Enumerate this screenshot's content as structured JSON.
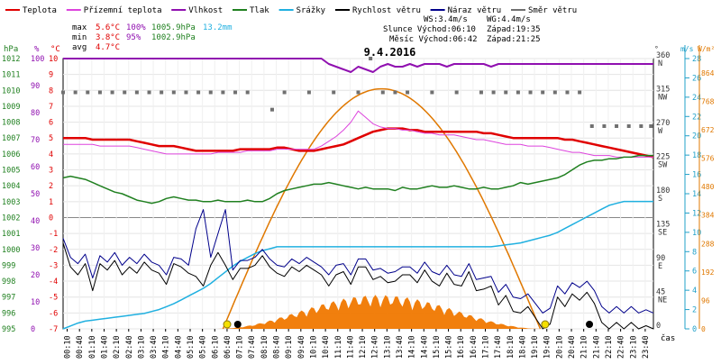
{
  "legend": [
    {
      "label": "Teplota",
      "color": "#e00000"
    },
    {
      "label": "Přízemní teplota",
      "color": "#dd44dd"
    },
    {
      "label": "Vlhkost",
      "color": "#9010b0"
    },
    {
      "label": "Tlak",
      "color": "#208020"
    },
    {
      "label": "Srážky",
      "color": "#20b0e0"
    },
    {
      "label": "Rychlost větru",
      "color": "#000000"
    },
    {
      "label": "Náraz větru",
      "color": "#00008b"
    },
    {
      "label": "Směr větru",
      "color": "#707070"
    }
  ],
  "stats": {
    "max_label": "max",
    "max_temp": "5.6°C",
    "max_hum": "100%",
    "max_press": "1005.9hPa",
    "max_rain": "13.2mm",
    "min_label": "min",
    "min_temp": "3.8°C",
    "min_hum": "95%",
    "min_press": "1002.9hPa",
    "avg_label": "avg",
    "avg_temp": "4.7°C"
  },
  "wind_info": {
    "ws": "WS:3.4m/s",
    "wg": "WG:4.4m/s",
    "sun": "Slunce Východ:06:10",
    "sun_set": "Západ:19:35",
    "moon": "Měsíc Východ:06:42",
    "moon_set": "Západ:21:25"
  },
  "axis_units": {
    "hpa": "hPa",
    "pct": "%",
    "deg": "°C",
    "wind_deg": "°",
    "ms": "m/s",
    "wm2": "W/m²",
    "time": "čas"
  },
  "chart_data": {
    "type": "line",
    "title": "9.4.2016",
    "x_ticks": [
      "00:10",
      "00:40",
      "01:10",
      "01:40",
      "02:10",
      "02:40",
      "03:10",
      "03:40",
      "04:10",
      "04:40",
      "05:10",
      "05:40",
      "06:10",
      "06:40",
      "07:10",
      "07:40",
      "08:10",
      "08:40",
      "09:10",
      "09:40",
      "10:10",
      "10:40",
      "11:10",
      "11:40",
      "12:10",
      "12:40",
      "13:10",
      "13:40",
      "14:10",
      "14:40",
      "15:10",
      "15:40",
      "16:10",
      "16:40",
      "17:10",
      "17:40",
      "18:10",
      "18:40",
      "19:10",
      "19:40",
      "20:10",
      "20:40",
      "21:10",
      "21:40",
      "22:10",
      "22:40",
      "23:10",
      "23:40"
    ],
    "axes": {
      "pressure_hpa": {
        "range": [
          995,
          1012
        ],
        "ticks": [
          995,
          996,
          997,
          998,
          999,
          1000,
          1001,
          1002,
          1003,
          1004,
          1005,
          1006,
          1007,
          1008,
          1009,
          1010,
          1011,
          1012
        ]
      },
      "humidity_pct": {
        "range": [
          0,
          100
        ],
        "ticks": [
          0,
          10,
          20,
          30,
          40,
          50,
          60,
          70,
          80,
          90,
          100
        ]
      },
      "temperature_c": {
        "range": [
          -7,
          10
        ],
        "ticks": [
          -7,
          -6,
          -5,
          -4,
          -3,
          -2,
          -1,
          0,
          1,
          2,
          3,
          4,
          5,
          6,
          7,
          8,
          9,
          10
        ]
      },
      "wind_direction_deg": {
        "range": [
          0,
          360
        ],
        "ticks": [
          {
            "v": 0,
            "l": "0"
          },
          {
            "v": 45,
            "l": "45 NE"
          },
          {
            "v": 90,
            "l": "90 E"
          },
          {
            "v": 135,
            "l": "135 SE"
          },
          {
            "v": 180,
            "l": "180 S"
          },
          {
            "v": 225,
            "l": "225 SW"
          },
          {
            "v": 270,
            "l": "270 W"
          },
          {
            "v": 315,
            "l": "315 NW"
          },
          {
            "v": 360,
            "l": "360 N"
          }
        ]
      },
      "wind_speed_ms": {
        "range": [
          0,
          28
        ],
        "ticks": [
          0,
          2,
          4,
          6,
          8,
          10,
          12,
          14,
          16,
          18,
          20,
          22,
          24,
          26,
          28
        ]
      },
      "radiation_wm2": {
        "range": [
          0,
          912
        ],
        "ticks": [
          0,
          96,
          192,
          288,
          384,
          480,
          576,
          672,
          768,
          864
        ]
      }
    },
    "series": [
      {
        "name": "Teplota",
        "color": "#e00000",
        "width": 2.5,
        "axis": "temperature_c",
        "values": [
          5.0,
          5.0,
          5.0,
          5.0,
          4.9,
          4.9,
          4.9,
          4.9,
          4.9,
          4.9,
          4.8,
          4.7,
          4.6,
          4.5,
          4.5,
          4.5,
          4.4,
          4.3,
          4.2,
          4.2,
          4.2,
          4.2,
          4.2,
          4.2,
          4.3,
          4.3,
          4.3,
          4.3,
          4.3,
          4.4,
          4.4,
          4.3,
          4.2,
          4.2,
          4.2,
          4.3,
          4.4,
          4.5,
          4.6,
          4.8,
          5.0,
          5.2,
          5.4,
          5.5,
          5.6,
          5.6,
          5.6,
          5.5,
          5.5,
          5.4,
          5.4,
          5.4,
          5.4,
          5.4,
          5.4,
          5.4,
          5.4,
          5.3,
          5.3,
          5.2,
          5.1,
          5.0,
          5.0,
          5.0,
          5.0,
          5.0,
          5.0,
          5.0,
          4.9,
          4.9,
          4.8,
          4.7,
          4.6,
          4.5,
          4.4,
          4.3,
          4.2,
          4.1,
          4.0,
          3.9,
          3.8
        ]
      },
      {
        "name": "Přízemní teplota",
        "color": "#dd44dd",
        "width": 1,
        "axis": "temperature_c",
        "values": [
          4.6,
          4.6,
          4.6,
          4.6,
          4.6,
          4.5,
          4.5,
          4.5,
          4.5,
          4.5,
          4.4,
          4.3,
          4.2,
          4.1,
          4.0,
          4.0,
          4.0,
          4.0,
          4.0,
          4.0,
          4.0,
          4.1,
          4.1,
          4.1,
          4.1,
          4.2,
          4.2,
          4.2,
          4.2,
          4.3,
          4.3,
          4.3,
          4.3,
          4.3,
          4.3,
          4.5,
          4.8,
          5.1,
          5.5,
          6.0,
          6.7,
          6.3,
          5.9,
          5.7,
          5.6,
          5.6,
          5.5,
          5.5,
          5.4,
          5.3,
          5.3,
          5.2,
          5.2,
          5.2,
          5.1,
          5.0,
          4.9,
          4.9,
          4.8,
          4.7,
          4.6,
          4.6,
          4.6,
          4.5,
          4.5,
          4.5,
          4.4,
          4.3,
          4.2,
          4.1,
          4.1,
          4.0,
          3.9,
          3.9,
          3.9,
          3.8,
          3.8,
          3.8,
          3.8,
          3.8,
          3.8
        ]
      },
      {
        "name": "Vlhkost",
        "color": "#9010b0",
        "width": 2,
        "axis": "humidity_pct",
        "values": [
          100,
          100,
          100,
          100,
          100,
          100,
          100,
          100,
          100,
          100,
          100,
          100,
          100,
          100,
          100,
          100,
          100,
          100,
          100,
          100,
          100,
          100,
          100,
          100,
          100,
          100,
          100,
          100,
          100,
          100,
          100,
          100,
          100,
          100,
          100,
          100,
          98,
          97,
          96,
          95,
          97,
          96,
          95,
          97,
          98,
          97,
          97,
          98,
          97,
          98,
          98,
          98,
          97,
          98,
          98,
          98,
          98,
          98,
          97,
          98,
          98,
          98,
          98,
          98,
          98,
          98,
          98,
          98,
          98,
          98,
          98,
          98,
          98,
          98,
          98,
          98,
          98,
          98,
          98,
          98,
          98
        ]
      },
      {
        "name": "Tlak",
        "color": "#208020",
        "width": 1.5,
        "axis": "pressure_hpa",
        "values": [
          1004.5,
          1004.6,
          1004.5,
          1004.4,
          1004.2,
          1004.0,
          1003.8,
          1003.6,
          1003.5,
          1003.3,
          1003.1,
          1003.0,
          1002.9,
          1003.0,
          1003.2,
          1003.3,
          1003.2,
          1003.1,
          1003.1,
          1003.0,
          1003.0,
          1003.1,
          1003.0,
          1003.0,
          1003.0,
          1003.1,
          1003.0,
          1003.0,
          1003.2,
          1003.5,
          1003.7,
          1003.8,
          1003.9,
          1004.0,
          1004.1,
          1004.1,
          1004.2,
          1004.1,
          1004.0,
          1003.9,
          1003.8,
          1003.9,
          1003.8,
          1003.8,
          1003.8,
          1003.7,
          1003.9,
          1003.8,
          1003.8,
          1003.9,
          1004.0,
          1003.9,
          1003.9,
          1004.0,
          1003.9,
          1003.8,
          1003.8,
          1003.9,
          1003.8,
          1003.8,
          1003.9,
          1004.0,
          1004.2,
          1004.1,
          1004.2,
          1004.3,
          1004.4,
          1004.5,
          1004.7,
          1005.0,
          1005.3,
          1005.5,
          1005.6,
          1005.6,
          1005.7,
          1005.7,
          1005.8,
          1005.8,
          1005.9,
          1005.9,
          1005.9
        ]
      },
      {
        "name": "Srážky",
        "color": "#20b0e0",
        "width": 1.5,
        "axis": "radiation_wm2_rain",
        "values": [
          0,
          0.3,
          0.6,
          0.8,
          0.9,
          1.0,
          1.1,
          1.2,
          1.3,
          1.4,
          1.5,
          1.6,
          1.8,
          2.0,
          2.3,
          2.6,
          3.0,
          3.4,
          3.8,
          4.2,
          4.7,
          5.3,
          5.9,
          6.5,
          7.0,
          7.4,
          7.8,
          8.1,
          8.3,
          8.5,
          8.5,
          8.5,
          8.5,
          8.5,
          8.5,
          8.5,
          8.5,
          8.5,
          8.5,
          8.5,
          8.5,
          8.5,
          8.5,
          8.5,
          8.5,
          8.5,
          8.5,
          8.5,
          8.5,
          8.5,
          8.5,
          8.5,
          8.5,
          8.5,
          8.5,
          8.5,
          8.5,
          8.5,
          8.5,
          8.6,
          8.7,
          8.8,
          8.9,
          9.1,
          9.3,
          9.5,
          9.7,
          10.0,
          10.4,
          10.8,
          11.2,
          11.6,
          12.0,
          12.4,
          12.8,
          13.0,
          13.2,
          13.2,
          13.2,
          13.2,
          13.2
        ]
      },
      {
        "name": "Rychlost větru",
        "color": "#000000",
        "width": 1,
        "axis": "temperature_c",
        "values": [
          -1.6,
          -3.1,
          -3.6,
          -2.9,
          -4.6,
          -2.9,
          -3.3,
          -2.7,
          -3.6,
          -3.1,
          -3.5,
          -2.8,
          -3.3,
          -3.5,
          -4.2,
          -2.9,
          -3.1,
          -3.5,
          -3.7,
          -4.3,
          -3.0,
          -2.2,
          -3.0,
          -3.9,
          -3.2,
          -3.2,
          -3.0,
          -2.4,
          -3.1,
          -3.5,
          -3.7,
          -3.1,
          -3.4,
          -3.0,
          -3.3,
          -3.6,
          -4.3,
          -3.6,
          -3.4,
          -4.2,
          -3.1,
          -3.1,
          -3.9,
          -3.7,
          -4.1,
          -4.0,
          -3.6,
          -3.6,
          -4.1,
          -3.3,
          -4.0,
          -4.3,
          -3.5,
          -4.2,
          -4.3,
          -3.4,
          -4.6,
          -4.5,
          -4.3,
          -5.5,
          -4.9,
          -5.9,
          -6.0,
          -5.6,
          -6.3,
          -7.0,
          -6.7,
          -5.0,
          -5.6,
          -4.8,
          -5.2,
          -4.7,
          -5.4,
          -6.6,
          -7.0,
          -6.6,
          -7.0,
          -6.6,
          -7.0,
          -6.8,
          -7.0
        ]
      },
      {
        "name": "Náraz větru",
        "color": "#00008b",
        "width": 1,
        "axis": "temperature_c",
        "values": [
          -1.3,
          -2.5,
          -2.9,
          -2.3,
          -3.8,
          -2.4,
          -2.8,
          -2.2,
          -3.0,
          -2.5,
          -2.9,
          -2.3,
          -2.8,
          -3.0,
          -3.6,
          -2.5,
          -2.6,
          -3.0,
          -0.7,
          0.5,
          -2.5,
          -1.0,
          0.5,
          -3.3,
          -2.7,
          -2.7,
          -2.5,
          -2.0,
          -2.6,
          -3.0,
          -3.1,
          -2.6,
          -2.9,
          -2.5,
          -2.8,
          -3.1,
          -3.6,
          -3.0,
          -2.9,
          -3.6,
          -2.6,
          -2.6,
          -3.3,
          -3.2,
          -3.5,
          -3.4,
          -3.1,
          -3.1,
          -3.5,
          -2.8,
          -3.4,
          -3.6,
          -3.0,
          -3.6,
          -3.7,
          -2.9,
          -3.9,
          -3.8,
          -3.7,
          -4.7,
          -4.2,
          -5.0,
          -5.1,
          -4.8,
          -5.4,
          -6.0,
          -5.7,
          -4.3,
          -4.8,
          -4.1,
          -4.4,
          -4.0,
          -4.6,
          -5.6,
          -6.0,
          -5.6,
          -6.0,
          -5.6,
          -6.0,
          -5.8,
          -6.0
        ]
      }
    ],
    "wind_direction_points": [
      {
        "t": 0.0,
        "deg": 315
      },
      {
        "t": 0.5,
        "deg": 315
      },
      {
        "t": 1.0,
        "deg": 315
      },
      {
        "t": 1.5,
        "deg": 315
      },
      {
        "t": 2.0,
        "deg": 315
      },
      {
        "t": 2.5,
        "deg": 315
      },
      {
        "t": 3.0,
        "deg": 315
      },
      {
        "t": 3.5,
        "deg": 315
      },
      {
        "t": 4.0,
        "deg": 315
      },
      {
        "t": 4.5,
        "deg": 315
      },
      {
        "t": 5.0,
        "deg": 315
      },
      {
        "t": 5.5,
        "deg": 315
      },
      {
        "t": 6.0,
        "deg": 315
      },
      {
        "t": 6.5,
        "deg": 315
      },
      {
        "t": 7.0,
        "deg": 315
      },
      {
        "t": 7.5,
        "deg": 315
      },
      {
        "t": 8.5,
        "deg": 292
      },
      {
        "t": 9.0,
        "deg": 315
      },
      {
        "t": 10.0,
        "deg": 315
      },
      {
        "t": 11.0,
        "deg": 315
      },
      {
        "t": 12.0,
        "deg": 315
      },
      {
        "t": 12.5,
        "deg": 360
      },
      {
        "t": 13.0,
        "deg": 315
      },
      {
        "t": 13.5,
        "deg": 315
      },
      {
        "t": 14.0,
        "deg": 315
      },
      {
        "t": 15.0,
        "deg": 315
      },
      {
        "t": 16.0,
        "deg": 315
      },
      {
        "t": 17.0,
        "deg": 315
      },
      {
        "t": 17.5,
        "deg": 315
      },
      {
        "t": 18.0,
        "deg": 315
      },
      {
        "t": 18.5,
        "deg": 315
      },
      {
        "t": 19.0,
        "deg": 315
      },
      {
        "t": 19.5,
        "deg": 315
      },
      {
        "t": 20.0,
        "deg": 315
      },
      {
        "t": 20.5,
        "deg": 315
      },
      {
        "t": 21.0,
        "deg": 315
      },
      {
        "t": 21.5,
        "deg": 270
      },
      {
        "t": 22.0,
        "deg": 270
      },
      {
        "t": 22.5,
        "deg": 270
      },
      {
        "t": 23.0,
        "deg": 270
      },
      {
        "t": 23.5,
        "deg": 270
      },
      {
        "t": 23.9,
        "deg": 270
      }
    ],
    "solar_curve": {
      "rise_h": 6.5,
      "set_h": 19.4,
      "peak_h": 13.0,
      "peak_wm2": 810
    },
    "radiation_area": {
      "start_h": 6.2,
      "end_h": 19.5,
      "peak_h": 13.0,
      "peak_wm2": 115
    },
    "sun_markers": [
      {
        "h": 6.67,
        "kind": "sun-rise"
      },
      {
        "h": 19.6,
        "kind": "sun-set"
      }
    ],
    "moon_markers": [
      {
        "h": 7.1,
        "kind": "moon-rise"
      },
      {
        "h": 21.4,
        "kind": "moon-set"
      }
    ]
  }
}
